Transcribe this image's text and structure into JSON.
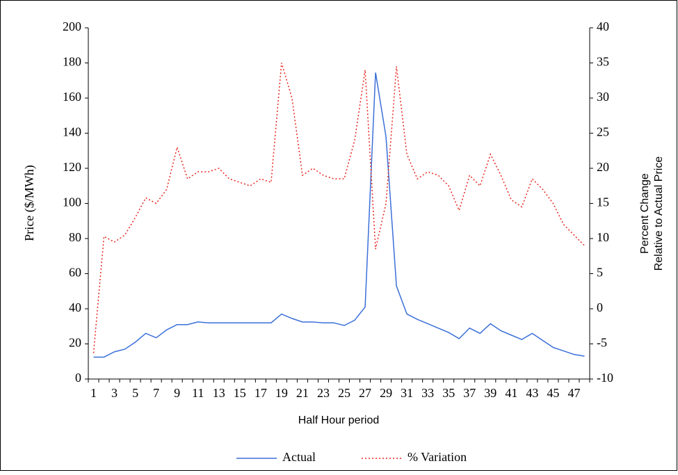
{
  "chart_data": {
    "type": "line",
    "xlabel": "Half Hour period",
    "ylabel": "Price ($/MWh)",
    "y2label": [
      "Percent Change",
      "Relative to Actual Price"
    ],
    "categories": [
      "1",
      null,
      "3",
      null,
      "5",
      null,
      "7",
      null,
      "9",
      null,
      "11",
      null,
      "13",
      null,
      "15",
      null,
      "17",
      null,
      "19",
      null,
      "21",
      null,
      "23",
      null,
      "25",
      null,
      "27",
      null,
      "29",
      null,
      "31",
      null,
      "33",
      null,
      "35",
      null,
      "37",
      null,
      "39",
      null,
      "41",
      null,
      "43",
      null,
      "45",
      null,
      "47",
      null
    ],
    "series": [
      {
        "name": "Actual",
        "color": "#3a6fd8",
        "dash": "solid",
        "values": [
          12.5,
          12.5,
          15.5,
          17,
          21,
          26,
          23.5,
          28,
          31,
          31,
          32.5,
          32,
          32,
          32,
          32,
          32,
          32,
          32,
          37,
          34.5,
          32.5,
          32.5,
          32,
          32,
          30.5,
          33.5,
          41,
          174.5,
          138,
          53,
          37,
          34,
          31.5,
          29,
          26.5,
          23,
          29,
          26,
          31.5,
          27.5,
          25,
          22.5,
          26,
          22,
          18,
          16,
          14,
          13
        ]
      },
      {
        "name": "% Variation",
        "color": "#e8241c",
        "dash": "dotted",
        "axis": "y2",
        "values": [
          -6.3,
          10.3,
          9.5,
          10.5,
          13,
          15.8,
          15,
          17,
          23,
          18.5,
          19.5,
          19.5,
          20,
          18.5,
          18,
          17.5,
          18.5,
          18,
          35,
          30,
          19,
          20,
          19,
          18.5,
          18.5,
          24,
          34,
          8.5,
          15,
          34.5,
          22,
          18.5,
          19.5,
          19,
          17.5,
          14,
          19,
          17.5,
          22,
          19,
          15.5,
          14.5,
          18.5,
          17,
          15,
          12,
          10.5,
          9
        ]
      }
    ],
    "ylim": [
      0,
      200
    ],
    "yticks": [
      0,
      20,
      40,
      60,
      80,
      100,
      120,
      140,
      160,
      180,
      200
    ],
    "y2lim": [
      -10,
      40
    ],
    "y2ticks": [
      -10,
      -5,
      0,
      5,
      10,
      15,
      20,
      25,
      30,
      35,
      40
    ],
    "grid": false,
    "legend": "bottom"
  }
}
